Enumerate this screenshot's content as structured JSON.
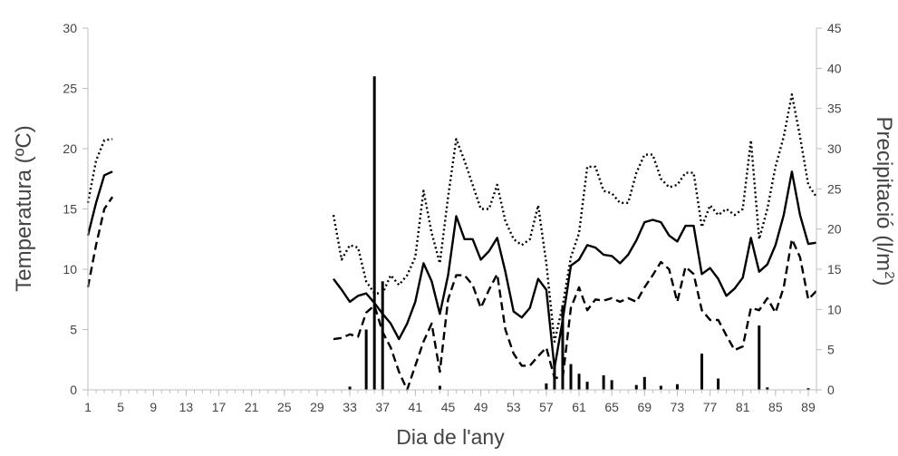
{
  "chart_data": {
    "type": "line",
    "xlabel": "Dia de l'any",
    "ylabel_left": "Temperatura (ºC)",
    "ylabel_right_main": "Precipitació (l/m",
    "ylabel_right_sup": "2",
    "ylabel_right_end": ")",
    "xlim": [
      1,
      90
    ],
    "ylim_left": [
      0,
      30
    ],
    "ylim_right": [
      0,
      45
    ],
    "x_ticks": [
      "1",
      "5",
      "9",
      "13",
      "17",
      "21",
      "25",
      "29",
      "33",
      "37",
      "41",
      "45",
      "49",
      "53",
      "57",
      "61",
      "65",
      "69",
      "73",
      "77",
      "81",
      "85",
      "89"
    ],
    "y_ticks_left": [
      "0",
      "5",
      "10",
      "15",
      "20",
      "25",
      "30"
    ],
    "y_ticks_right": [
      "0",
      "5",
      "10",
      "15",
      "20",
      "25",
      "30",
      "35",
      "40",
      "45"
    ],
    "grid": false,
    "colors": {
      "series": "#000000",
      "axis": "#bfbfbf",
      "text": "#444444"
    },
    "series": [
      {
        "style": "dotted",
        "axis": "left",
        "segments": [
          [
            [
              1,
              15.5
            ],
            [
              2,
              19
            ],
            [
              3,
              20.7
            ],
            [
              4,
              20.8
            ]
          ],
          [
            [
              31,
              14.5
            ],
            [
              32,
              10.8
            ],
            [
              33,
              12
            ],
            [
              34,
              11.8
            ],
            [
              35,
              9
            ],
            [
              36,
              8
            ],
            [
              37,
              8
            ],
            [
              38,
              9.5
            ],
            [
              39,
              8.7
            ],
            [
              40,
              9.5
            ],
            [
              41,
              11
            ],
            [
              42,
              16.5
            ],
            [
              43,
              13
            ],
            [
              44,
              10.5
            ],
            [
              45,
              16
            ],
            [
              46,
              20.8
            ],
            [
              47,
              19
            ],
            [
              48,
              17
            ],
            [
              49,
              15
            ],
            [
              50,
              15
            ],
            [
              51,
              17
            ],
            [
              52,
              14
            ],
            [
              53,
              12.5
            ],
            [
              54,
              12
            ],
            [
              55,
              12.5
            ],
            [
              56,
              15.3
            ],
            [
              57,
              10.5
            ],
            [
              58,
              4
            ],
            [
              59,
              7
            ],
            [
              60,
              11
            ],
            [
              61,
              13
            ],
            [
              62,
              18.5
            ],
            [
              63,
              18.5
            ],
            [
              64,
              16.5
            ],
            [
              65,
              16.3
            ],
            [
              66,
              15.5
            ],
            [
              67,
              15.5
            ],
            [
              68,
              18
            ],
            [
              69,
              19.5
            ],
            [
              70,
              19.5
            ],
            [
              71,
              17.5
            ],
            [
              72,
              16.8
            ],
            [
              73,
              17
            ],
            [
              74,
              18
            ],
            [
              75,
              18
            ],
            [
              76,
              13.5
            ],
            [
              77,
              15.3
            ],
            [
              78,
              14.5
            ],
            [
              79,
              15
            ],
            [
              80,
              14.5
            ],
            [
              81,
              15
            ],
            [
              82,
              20.7
            ],
            [
              83,
              12.5
            ],
            [
              84,
              15
            ],
            [
              85,
              18.5
            ],
            [
              86,
              21
            ],
            [
              87,
              24.5
            ],
            [
              88,
              21
            ],
            [
              89,
              17
            ],
            [
              90,
              16
            ]
          ]
        ]
      },
      {
        "style": "solid",
        "axis": "left",
        "segments": [
          [
            [
              1,
              12.8
            ],
            [
              2,
              15.5
            ],
            [
              3,
              17.8
            ],
            [
              4,
              18.1
            ]
          ],
          [
            [
              31,
              9.2
            ],
            [
              32,
              8.3
            ],
            [
              33,
              7.3
            ],
            [
              34,
              7.8
            ],
            [
              35,
              8
            ],
            [
              36,
              7.2
            ],
            [
              37,
              6.3
            ],
            [
              38,
              5.5
            ],
            [
              39,
              4.2
            ],
            [
              40,
              5.5
            ],
            [
              41,
              7.3
            ],
            [
              42,
              10.5
            ],
            [
              43,
              9
            ],
            [
              44,
              6.3
            ],
            [
              45,
              9.5
            ],
            [
              46,
              14.4
            ],
            [
              47,
              12.5
            ],
            [
              48,
              12.5
            ],
            [
              49,
              10.8
            ],
            [
              50,
              11.5
            ],
            [
              51,
              12.6
            ],
            [
              52,
              9.8
            ],
            [
              53,
              6.5
            ],
            [
              54,
              6
            ],
            [
              55,
              6.8
            ],
            [
              56,
              9.2
            ],
            [
              57,
              8.3
            ],
            [
              58,
              1.8
            ],
            [
              59,
              5.8
            ],
            [
              60,
              10.3
            ],
            [
              61,
              10.8
            ],
            [
              62,
              12
            ],
            [
              63,
              11.8
            ],
            [
              64,
              11.2
            ],
            [
              65,
              11.1
            ],
            [
              66,
              10.5
            ],
            [
              67,
              11.2
            ],
            [
              68,
              12.4
            ],
            [
              69,
              13.9
            ],
            [
              70,
              14.1
            ],
            [
              71,
              13.9
            ],
            [
              72,
              12.8
            ],
            [
              73,
              12.3
            ],
            [
              74,
              13.6
            ],
            [
              75,
              13.6
            ],
            [
              76,
              9.6
            ],
            [
              77,
              10.1
            ],
            [
              78,
              9.2
            ],
            [
              79,
              7.8
            ],
            [
              80,
              8.4
            ],
            [
              81,
              9.3
            ],
            [
              82,
              12.6
            ],
            [
              83,
              9.8
            ],
            [
              84,
              10.4
            ],
            [
              85,
              12
            ],
            [
              86,
              14.5
            ],
            [
              87,
              18.1
            ],
            [
              88,
              14.5
            ],
            [
              89,
              12.1
            ],
            [
              90,
              12.2
            ]
          ]
        ]
      },
      {
        "style": "dashed",
        "axis": "left",
        "segments": [
          [
            [
              1,
              8.5
            ],
            [
              2,
              12
            ],
            [
              3,
              15
            ],
            [
              4,
              16
            ]
          ],
          [
            [
              31,
              4.2
            ],
            [
              32,
              4.3
            ],
            [
              33,
              4.6
            ],
            [
              34,
              4.4
            ],
            [
              35,
              6.4
            ],
            [
              36,
              7
            ],
            [
              37,
              4.8
            ],
            [
              38,
              3.5
            ],
            [
              39,
              1.5
            ],
            [
              40,
              0
            ],
            [
              41,
              2
            ],
            [
              42,
              4
            ],
            [
              43,
              5.5
            ],
            [
              44,
              1.5
            ],
            [
              45,
              7.5
            ],
            [
              46,
              9.5
            ],
            [
              47,
              9.5
            ],
            [
              48,
              8.7
            ],
            [
              49,
              6.8
            ],
            [
              50,
              8.3
            ],
            [
              51,
              9.6
            ],
            [
              52,
              5
            ],
            [
              53,
              3
            ],
            [
              54,
              2
            ],
            [
              55,
              2
            ],
            [
              56,
              2.8
            ],
            [
              57,
              3.5
            ],
            [
              58,
              1
            ],
            [
              59,
              1
            ],
            [
              60,
              6.8
            ],
            [
              61,
              8.5
            ],
            [
              62,
              6.6
            ],
            [
              63,
              7.5
            ],
            [
              64,
              7.4
            ],
            [
              65,
              7.6
            ],
            [
              66,
              7.3
            ],
            [
              67,
              7.6
            ],
            [
              68,
              7.3
            ],
            [
              69,
              8.5
            ],
            [
              70,
              9.5
            ],
            [
              71,
              10.6
            ],
            [
              72,
              10
            ],
            [
              73,
              7.3
            ],
            [
              74,
              10.2
            ],
            [
              75,
              9.6
            ],
            [
              76,
              6.6
            ],
            [
              77,
              5.8
            ],
            [
              78,
              5.8
            ],
            [
              79,
              4.5
            ],
            [
              80,
              3.3
            ],
            [
              81,
              3.6
            ],
            [
              82,
              6.8
            ],
            [
              83,
              6.6
            ],
            [
              84,
              7.6
            ],
            [
              85,
              6.4
            ],
            [
              86,
              8.5
            ],
            [
              87,
              12.5
            ],
            [
              88,
              11
            ],
            [
              89,
              7.5
            ],
            [
              90,
              8.2
            ]
          ]
        ]
      }
    ],
    "bars": {
      "axis": "right",
      "x": [
        33,
        35,
        36,
        37,
        44,
        57,
        58,
        59,
        60,
        61,
        62,
        64,
        65,
        68,
        69,
        71,
        73,
        76,
        78,
        83,
        84,
        89
      ],
      "values": [
        0.4,
        7.5,
        39,
        13.5,
        0.5,
        0.8,
        3.5,
        10.5,
        3.2,
        2,
        1,
        1.8,
        1.2,
        0.6,
        1.6,
        0.5,
        0.7,
        4.5,
        1.4,
        8,
        0.3,
        0.2
      ]
    }
  }
}
